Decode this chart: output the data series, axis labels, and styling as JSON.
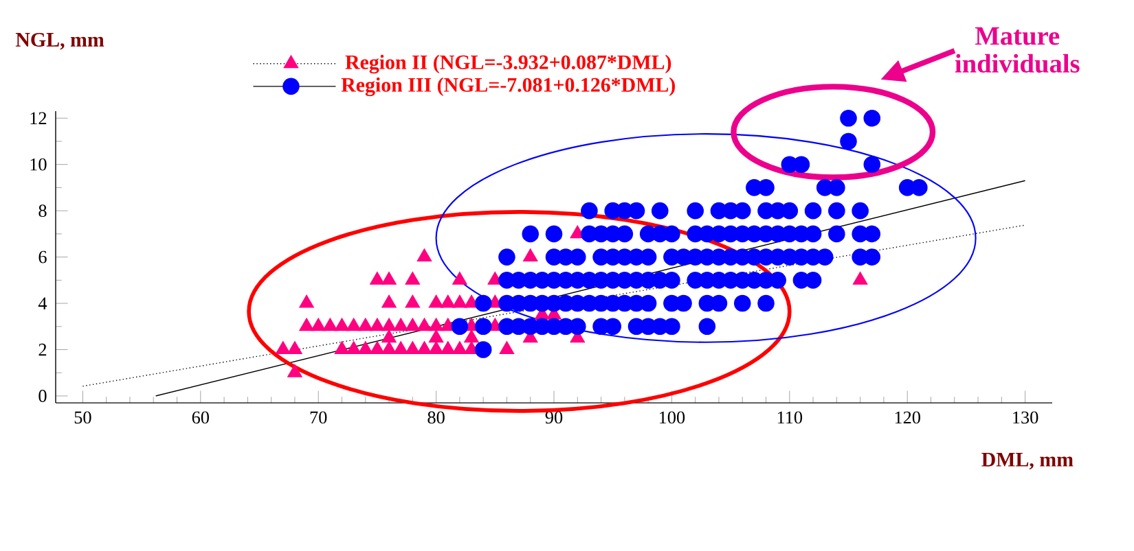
{
  "chart_data": {
    "type": "scatter",
    "xlabel": "DML, mm",
    "ylabel": "NGL, mm",
    "xlim": [
      47.7,
      132.3
    ],
    "ylim": [
      -0.3,
      12.3
    ],
    "xticks": [
      50,
      60,
      70,
      80,
      90,
      100,
      110,
      120,
      130
    ],
    "yticks": [
      0,
      2,
      4,
      6,
      8,
      10,
      12
    ],
    "legend": "top",
    "grid": false,
    "annotations": [
      "Mature individuals"
    ],
    "series": [
      {
        "name": "Region II (NGL=-3.932+0.087*DML)",
        "color": "#ff0080",
        "marker": "triangle",
        "line_style": "dotted",
        "x": [
          67,
          68,
          72,
          73,
          74,
          75,
          76,
          77,
          78,
          79,
          80,
          81,
          82,
          83,
          86,
          68,
          69,
          70,
          71,
          72,
          73,
          74,
          75,
          76,
          77,
          78,
          79,
          80,
          81,
          83,
          85,
          69,
          76,
          78,
          80,
          81,
          82,
          83,
          85,
          75,
          76,
          78,
          82,
          85,
          79,
          88,
          92,
          76,
          80,
          83,
          88,
          92,
          89,
          90,
          116
        ],
        "values": [
          2,
          2,
          2,
          2,
          2,
          2,
          2,
          2,
          2,
          2,
          2,
          2,
          2,
          2,
          2,
          1,
          3,
          3,
          3,
          3,
          3,
          3,
          3,
          3,
          3,
          3,
          3,
          3,
          3,
          3,
          3,
          4,
          4,
          4,
          4,
          4,
          4,
          4,
          4,
          5,
          5,
          5,
          5,
          5,
          6,
          6,
          7,
          2.5,
          2.5,
          2.5,
          2.5,
          2.5,
          3.5,
          3.5,
          5
        ]
      },
      {
        "name": "Region III (NGL=-7.081+0.126*DML)",
        "color": "#0000ff",
        "marker": "circle",
        "line_style": "solid",
        "x": [
          84,
          82,
          84,
          86,
          87,
          88,
          89,
          90,
          91,
          92,
          94,
          95,
          97,
          98,
          99,
          100,
          103,
          84,
          86,
          87,
          88,
          89,
          90,
          91,
          92,
          93,
          94,
          95,
          96,
          97,
          98,
          100,
          101,
          103,
          104,
          106,
          108,
          86,
          87,
          88,
          89,
          90,
          91,
          92,
          93,
          94,
          95,
          96,
          97,
          98,
          99,
          100,
          102,
          103,
          104,
          105,
          106,
          107,
          108,
          109,
          111,
          112,
          86,
          90,
          91,
          92,
          94,
          95,
          96,
          97,
          98,
          100,
          101,
          102,
          103,
          104,
          105,
          106,
          107,
          108,
          109,
          110,
          111,
          112,
          113,
          116,
          117,
          88,
          90,
          93,
          94,
          95,
          96,
          98,
          99,
          100,
          102,
          103,
          104,
          105,
          106,
          107,
          108,
          109,
          110,
          111,
          112,
          114,
          116,
          117,
          93,
          95,
          96,
          97,
          99,
          102,
          104,
          105,
          106,
          108,
          109,
          110,
          112,
          114,
          116,
          107,
          108,
          113,
          114,
          120,
          121,
          110,
          111,
          117,
          115,
          115,
          117
        ],
        "values": [
          2,
          3,
          3,
          3,
          3,
          3,
          3,
          3,
          3,
          3,
          3,
          3,
          3,
          3,
          3,
          3,
          3,
          4,
          4,
          4,
          4,
          4,
          4,
          4,
          4,
          4,
          4,
          4,
          4,
          4,
          4,
          4,
          4,
          4,
          4,
          4,
          4,
          5,
          5,
          5,
          5,
          5,
          5,
          5,
          5,
          5,
          5,
          5,
          5,
          5,
          5,
          5,
          5,
          5,
          5,
          5,
          5,
          5,
          5,
          5,
          5,
          5,
          6,
          6,
          6,
          6,
          6,
          6,
          6,
          6,
          6,
          6,
          6,
          6,
          6,
          6,
          6,
          6,
          6,
          6,
          6,
          6,
          6,
          6,
          6,
          6,
          6,
          7,
          7,
          7,
          7,
          7,
          7,
          7,
          7,
          7,
          7,
          7,
          7,
          7,
          7,
          7,
          7,
          7,
          7,
          7,
          7,
          7,
          7,
          7,
          8,
          8,
          8,
          8,
          8,
          8,
          8,
          8,
          8,
          8,
          8,
          8,
          8,
          8,
          8,
          9,
          9,
          9,
          9,
          9,
          9,
          10,
          10,
          10,
          11,
          12,
          12
        ]
      },
      {
        "type": "line",
        "color": "#000000",
        "line_style": "dotted",
        "marker": "none",
        "x": [
          50,
          130
        ],
        "values": [
          0.42,
          7.38
        ]
      },
      {
        "type": "line",
        "color": "#000000",
        "line_style": "solid",
        "marker": "none",
        "x": [
          56.2,
          130
        ],
        "values": [
          0.0,
          9.3
        ]
      }
    ]
  }
}
